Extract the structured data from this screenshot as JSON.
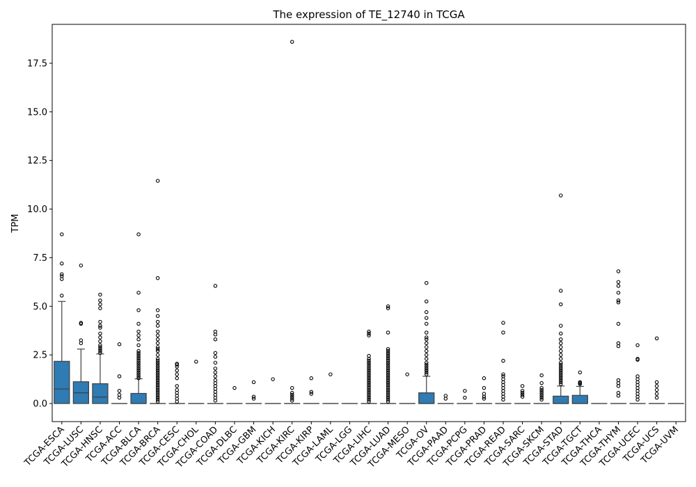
{
  "chart_data": {
    "type": "box",
    "title": "The expression of TE_12740 in TCGA",
    "ylabel": "TPM",
    "xlabel": "",
    "ylim": [
      -0.93,
      19.5
    ],
    "yticks": [
      0.0,
      2.5,
      5.0,
      7.5,
      10.0,
      12.5,
      15.0,
      17.5
    ],
    "ytick_labels": [
      "0.0",
      "2.5",
      "5.0",
      "7.5",
      "10.0",
      "12.5",
      "15.0",
      "17.5"
    ],
    "grid": false,
    "legend": "none",
    "box_color": "#2f7bb3",
    "categories": [
      "TCGA-ESCA",
      "TCGA-LUSC",
      "TCGA-HNSC",
      "TCGA-ACC",
      "TCGA-BLCA",
      "TCGA-BRCA",
      "TCGA-CESC",
      "TCGA-CHOL",
      "TCGA-COAD",
      "TCGA-DLBC",
      "TCGA-GBM",
      "TCGA-KICH",
      "TCGA-KIRC",
      "TCGA-KIRP",
      "TCGA-LAML",
      "TCGA-LGG",
      "TCGA-LIHC",
      "TCGA-LUAD",
      "TCGA-MESO",
      "TCGA-OV",
      "TCGA-PAAD",
      "TCGA-PCPG",
      "TCGA-PRAD",
      "TCGA-READ",
      "TCGA-SARC",
      "TCGA-SKCM",
      "TCGA-STAD",
      "TCGA-TGCT",
      "TCGA-THCA",
      "TCGA-THYM",
      "TCGA-UCEC",
      "TCGA-UCS",
      "TCGA-UVM"
    ],
    "boxes": [
      {
        "q1": 0,
        "median": 0.75,
        "q3": 2.17,
        "whisker_low": 0,
        "whisker_high": 5.25,
        "outliers": [
          5.55,
          6.4,
          6.55,
          6.65,
          7.2,
          8.7
        ]
      },
      {
        "q1": 0,
        "median": 0.55,
        "q3": 1.12,
        "whisker_low": 0,
        "whisker_high": 2.8,
        "outliers": [
          3.1,
          3.25,
          4.1,
          4.15,
          7.1
        ]
      },
      {
        "q1": 0,
        "median": 0.33,
        "q3": 1.02,
        "whisker_low": 0,
        "whisker_high": 2.55,
        "outliers": [
          2.6,
          2.7,
          2.8,
          2.9,
          3.0,
          3.2,
          3.4,
          3.6,
          3.9,
          4.0,
          4.2,
          4.9,
          5.1,
          5.3,
          5.6
        ]
      },
      {
        "q1": 0,
        "median": 0,
        "q3": 0,
        "whisker_low": 0,
        "whisker_high": 0,
        "outliers": [
          0.3,
          0.45,
          0.65,
          1.4,
          3.05
        ]
      },
      {
        "q1": 0,
        "median": 0,
        "q3": 0.52,
        "whisker_low": 0,
        "whisker_high": 1.27,
        "outliers": [
          1.3,
          1.4,
          1.5,
          1.6,
          1.7,
          1.8,
          1.9,
          2.0,
          2.1,
          2.2,
          2.3,
          2.4,
          2.5,
          2.6,
          2.7,
          3.0,
          3.3,
          3.5,
          3.7,
          4.1,
          4.8,
          5.7,
          8.7
        ]
      },
      {
        "q1": 0,
        "median": 0,
        "q3": 0,
        "whisker_low": 0,
        "whisker_high": 0,
        "outliers": [
          0.1,
          0.2,
          0.3,
          0.4,
          0.5,
          0.6,
          0.7,
          0.8,
          0.9,
          1.0,
          1.1,
          1.2,
          1.3,
          1.4,
          1.5,
          1.6,
          1.7,
          1.8,
          1.9,
          2.0,
          2.1,
          2.2,
          2.3,
          2.5,
          2.7,
          2.8,
          2.9,
          3.1,
          3.3,
          3.5,
          3.7,
          4.0,
          4.2,
          4.5,
          4.8,
          6.45,
          11.45
        ]
      },
      {
        "q1": 0,
        "median": 0,
        "q3": 0,
        "whisker_low": 0,
        "whisker_high": 0,
        "outliers": [
          0.1,
          0.25,
          0.4,
          0.55,
          0.7,
          0.9,
          1.3,
          1.5,
          1.7,
          1.9,
          2.0,
          2.05
        ]
      },
      {
        "q1": 0,
        "median": 0,
        "q3": 0,
        "whisker_low": 0,
        "whisker_high": 0,
        "outliers": [
          2.15
        ]
      },
      {
        "q1": 0,
        "median": 0,
        "q3": 0,
        "whisker_low": 0,
        "whisker_high": 0,
        "outliers": [
          0.15,
          0.3,
          0.45,
          0.6,
          0.75,
          0.9,
          1.05,
          1.2,
          1.4,
          1.6,
          1.8,
          2.1,
          2.4,
          2.6,
          3.3,
          3.55,
          3.7,
          6.05
        ]
      },
      {
        "q1": 0,
        "median": 0,
        "q3": 0,
        "whisker_low": 0,
        "whisker_high": 0,
        "outliers": [
          0.8
        ]
      },
      {
        "q1": 0,
        "median": 0,
        "q3": 0,
        "whisker_low": 0,
        "whisker_high": 0,
        "outliers": [
          0.25,
          0.35,
          1.1
        ]
      },
      {
        "q1": 0,
        "median": 0,
        "q3": 0,
        "whisker_low": 0,
        "whisker_high": 0,
        "outliers": [
          1.25
        ]
      },
      {
        "q1": 0,
        "median": 0,
        "q3": 0,
        "whisker_low": 0,
        "whisker_high": 0,
        "outliers": [
          0.15,
          0.25,
          0.35,
          0.45,
          0.55,
          0.8,
          18.6
        ]
      },
      {
        "q1": 0,
        "median": 0,
        "q3": 0,
        "whisker_low": 0,
        "whisker_high": 0,
        "outliers": [
          0.5,
          0.6,
          1.3
        ]
      },
      {
        "q1": 0,
        "median": 0,
        "q3": 0,
        "whisker_low": 0,
        "whisker_high": 0,
        "outliers": [
          1.5
        ]
      },
      {
        "q1": 0,
        "median": 0,
        "q3": 0,
        "whisker_low": 0,
        "whisker_high": 0,
        "outliers": []
      },
      {
        "q1": 0,
        "median": 0,
        "q3": 0,
        "whisker_low": 0,
        "whisker_high": 0,
        "outliers": [
          0.1,
          0.2,
          0.3,
          0.4,
          0.5,
          0.6,
          0.7,
          0.8,
          0.9,
          1.0,
          1.1,
          1.2,
          1.3,
          1.4,
          1.5,
          1.6,
          1.7,
          1.8,
          1.9,
          2.0,
          2.1,
          2.2,
          2.3,
          2.45,
          3.5,
          3.6,
          3.7
        ]
      },
      {
        "q1": 0,
        "median": 0,
        "q3": 0,
        "whisker_low": 0,
        "whisker_high": 0,
        "outliers": [
          0.1,
          0.2,
          0.3,
          0.4,
          0.5,
          0.6,
          0.7,
          0.8,
          0.9,
          1.0,
          1.1,
          1.2,
          1.3,
          1.4,
          1.5,
          1.6,
          1.7,
          1.8,
          1.9,
          2.0,
          2.1,
          2.2,
          2.3,
          2.4,
          2.5,
          2.6,
          2.7,
          2.8,
          3.65,
          4.9,
          5.0
        ]
      },
      {
        "q1": 0,
        "median": 0,
        "q3": 0,
        "whisker_low": 0,
        "whisker_high": 0,
        "outliers": [
          1.5
        ]
      },
      {
        "q1": 0,
        "median": 0,
        "q3": 0.55,
        "whisker_low": 0,
        "whisker_high": 1.4,
        "outliers": [
          1.5,
          1.6,
          1.7,
          1.8,
          1.9,
          2.0,
          2.1,
          2.3,
          2.5,
          2.7,
          2.9,
          3.1,
          3.3,
          3.4,
          3.65,
          4.1,
          4.4,
          4.7,
          5.25,
          6.2
        ]
      },
      {
        "q1": 0,
        "median": 0,
        "q3": 0,
        "whisker_low": 0,
        "whisker_high": 0,
        "outliers": [
          0.25,
          0.4
        ]
      },
      {
        "q1": 0,
        "median": 0,
        "q3": 0,
        "whisker_low": 0,
        "whisker_high": 0,
        "outliers": [
          0.3,
          0.65
        ]
      },
      {
        "q1": 0,
        "median": 0,
        "q3": 0,
        "whisker_low": 0,
        "whisker_high": 0,
        "outliers": [
          0.25,
          0.35,
          0.5,
          0.8,
          1.3
        ]
      },
      {
        "q1": 0,
        "median": 0,
        "q3": 0,
        "whisker_low": 0,
        "whisker_high": 0,
        "outliers": [
          0.2,
          0.35,
          0.5,
          0.65,
          0.8,
          0.95,
          1.1,
          1.25,
          1.4,
          1.5,
          2.2,
          3.65,
          4.15
        ]
      },
      {
        "q1": 0,
        "median": 0,
        "q3": 0,
        "whisker_low": 0,
        "whisker_high": 0,
        "outliers": [
          0.35,
          0.45,
          0.55,
          0.65,
          0.9
        ]
      },
      {
        "q1": 0,
        "median": 0,
        "q3": 0,
        "whisker_low": 0,
        "whisker_high": 0,
        "outliers": [
          0.2,
          0.3,
          0.4,
          0.5,
          0.6,
          0.7,
          0.8,
          1.05,
          1.45
        ]
      },
      {
        "q1": 0,
        "median": 0,
        "q3": 0.38,
        "whisker_low": 0,
        "whisker_high": 0.9,
        "outliers": [
          1.0,
          1.1,
          1.2,
          1.3,
          1.4,
          1.5,
          1.6,
          1.7,
          1.8,
          1.9,
          2.0,
          2.1,
          2.3,
          2.5,
          2.7,
          2.9,
          3.1,
          3.3,
          3.6,
          4.0,
          5.1,
          5.8,
          10.7
        ]
      },
      {
        "q1": 0,
        "median": 0,
        "q3": 0.42,
        "whisker_low": 0,
        "whisker_high": 0.88,
        "outliers": [
          1.0,
          1.05,
          1.1,
          1.6
        ]
      },
      {
        "q1": 0,
        "median": 0,
        "q3": 0,
        "whisker_low": 0,
        "whisker_high": 0,
        "outliers": []
      },
      {
        "q1": 0,
        "median": 0,
        "q3": 0,
        "whisker_low": 0,
        "whisker_high": 0,
        "outliers": [
          0.4,
          0.55,
          0.9,
          1.05,
          1.2,
          2.95,
          3.1,
          4.1,
          5.2,
          5.3,
          5.7,
          6.05,
          6.25,
          6.8
        ]
      },
      {
        "q1": 0,
        "median": 0,
        "q3": 0,
        "whisker_low": 0,
        "whisker_high": 0,
        "outliers": [
          0.2,
          0.35,
          0.5,
          0.65,
          0.8,
          0.95,
          1.1,
          1.25,
          1.4,
          2.25,
          2.3,
          3.0
        ]
      },
      {
        "q1": 0,
        "median": 0,
        "q3": 0,
        "whisker_low": 0,
        "whisker_high": 0,
        "outliers": [
          0.3,
          0.5,
          0.7,
          0.9,
          1.1,
          3.35
        ]
      },
      {
        "q1": 0,
        "median": 0,
        "q3": 0,
        "whisker_low": 0,
        "whisker_high": 0,
        "outliers": []
      }
    ]
  }
}
